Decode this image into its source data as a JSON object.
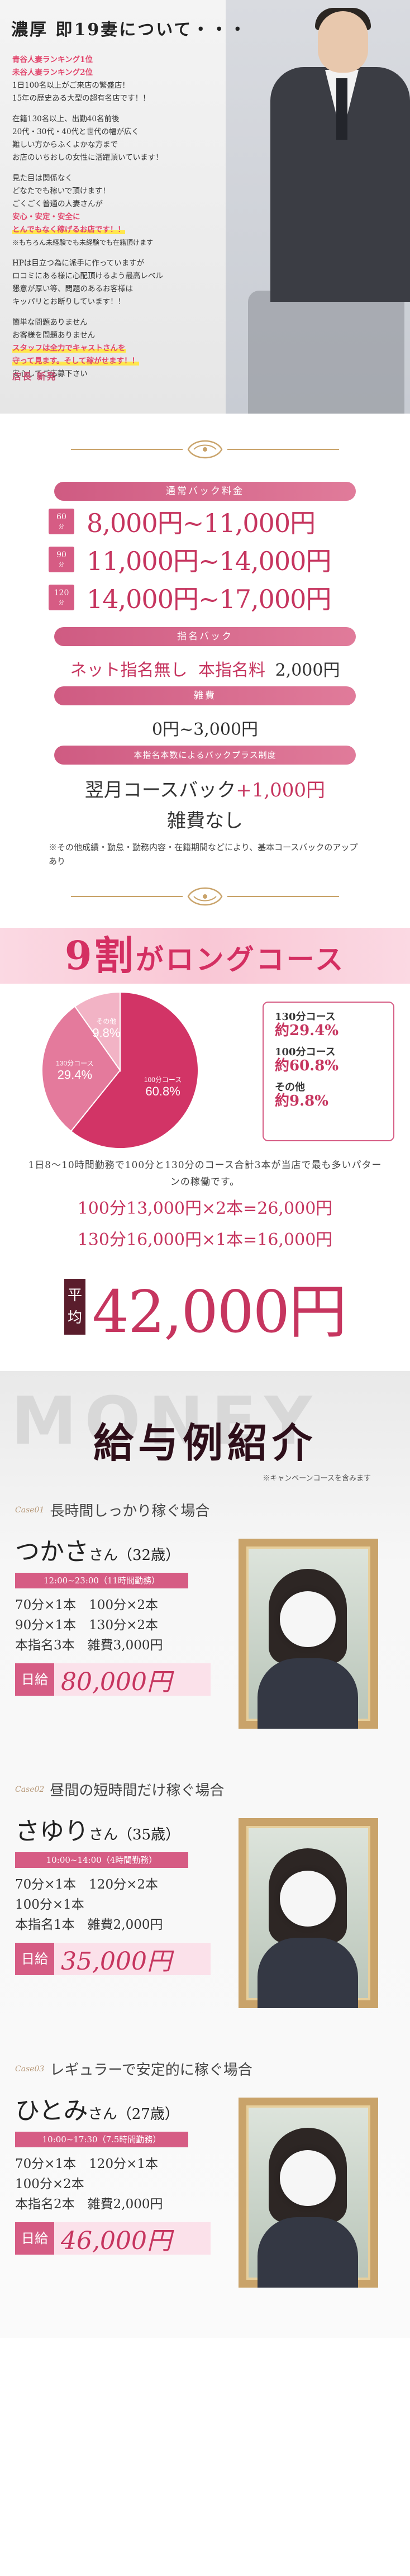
{
  "intro": {
    "title": "濃厚 即19妻について・・・",
    "paragraphs": [
      [
        "青谷人妻ランキング1位",
        "未谷人妻ランキング2位",
        "1日100名以上がご来店の繁盛店！",
        "15年の歴史ある大型の超有名店です！！"
      ],
      [
        "在籍130名以上、出勤40名前後",
        "20代・30代・40代と世代の幅が広く",
        "難しい方からふくよかな方まで",
        "お店のいちおしの女性に活躍頂いています！"
      ],
      [
        "見た目は関係なく",
        "どなたでも稼いで頂けます！",
        "ごくごく普通の人妻さんが",
        "安心・安定・安全に",
        "とんでもなく稼げるお店です！！",
        "※もちろん未経験でも未経験でも在籍頂けます"
      ],
      [
        "HPは目立つ為に派手に作っていますが",
        "ロコミにある様に心配頂けるよう最高レベル",
        "懇意が厚い等、問題のあるお客様は",
        "キッパリとお断りしています！！"
      ],
      [
        "簡単な問題ありません",
        "お客様を問題ありません",
        "スタッフは全力でキャストさんを",
        "守って見ます。そして稼がせます！！",
        "安心してご応募下さい"
      ]
    ],
    "signature": "店長 新発"
  },
  "price": {
    "normal_label": "通常バック料金",
    "rows": [
      {
        "minutes": "60",
        "unit": "分",
        "value": "8,000円~11,000円"
      },
      {
        "minutes": "90",
        "unit": "分",
        "value": "11,000円~14,000円"
      },
      {
        "minutes": "120",
        "unit": "分",
        "value": "14,000円~17,000円"
      }
    ],
    "nomination_label": "指名バック",
    "nomination_text_1": "ネット指名無し",
    "nomination_text_2": "本指名料",
    "nomination_value": "2,000円",
    "misc_label": "雑費",
    "misc_value": "0円~3,000円",
    "plus_label": "本指名本数によるバックプラス制度",
    "plus_text": "翌月コースバック",
    "plus_value": "+1,000円",
    "no_misc": "雑費なし",
    "note": "※その他成績・勤怠・勤務内容・在籍期間などにより、基本コースバックのアップあり"
  },
  "long": {
    "banner_big": "9割",
    "banner_text": "がロングコース",
    "legend": [
      {
        "label": "130分コース",
        "value": "約29.4%"
      },
      {
        "label": "100分コース",
        "value": "約60.8%"
      },
      {
        "label": "その他",
        "value": "約9.8%"
      }
    ],
    "desc": "1日8〜10時間勤務で100分と130分のコース合計3本が当店で最も多いパターンの稼働です。",
    "calc_1": "100分13,000円×2本=26,000円",
    "calc_2": "130分16,000円×1本=16,000円",
    "avg_label": "平均",
    "avg_value": "42,000円"
  },
  "chart_data": {
    "type": "pie",
    "categories": [
      "100分コース",
      "130分コース",
      "その他"
    ],
    "values": [
      60.8,
      29.4,
      9.8
    ],
    "colors": [
      "#d23466",
      "#e47a9c",
      "#f2b3c5"
    ]
  },
  "salary": {
    "bg": "MONEY",
    "title": "給与例紹介",
    "note": "※キャンペーンコースを含みます",
    "cases": [
      {
        "no": "Case01",
        "head": "長時間しっかり稼ぐ場合",
        "name": "つかさ",
        "suffix": "さん（32歳）",
        "time": "12:00~23:00（11時間勤務）",
        "lines": [
          "70分×1本　100分×2本",
          "90分×1本　130分×2本",
          "本指名3本　雑費3,000円"
        ],
        "total_label": "日給",
        "total_value": "80,000円"
      },
      {
        "no": "Case02",
        "head": "昼間の短時間だけ稼ぐ場合",
        "name": "さゆり",
        "suffix": "さん（35歳）",
        "time": "10:00~14:00（4時間勤務）",
        "lines": [
          "70分×1本　120分×2本",
          "100分×1本",
          "本指名1本　雑費2,000円"
        ],
        "total_label": "日給",
        "total_value": "35,000円"
      },
      {
        "no": "Case03",
        "head": "レギュラーで安定的に稼ぐ場合",
        "name": "ひとみ",
        "suffix": "さん（27歳）",
        "time": "10:00~17:30（7.5時間勤務）",
        "lines": [
          "70分×1本　120分×1本",
          "100分×2本",
          "本指名2本　雑費2,000円"
        ],
        "total_label": "日給",
        "total_value": "46,000円"
      }
    ]
  }
}
